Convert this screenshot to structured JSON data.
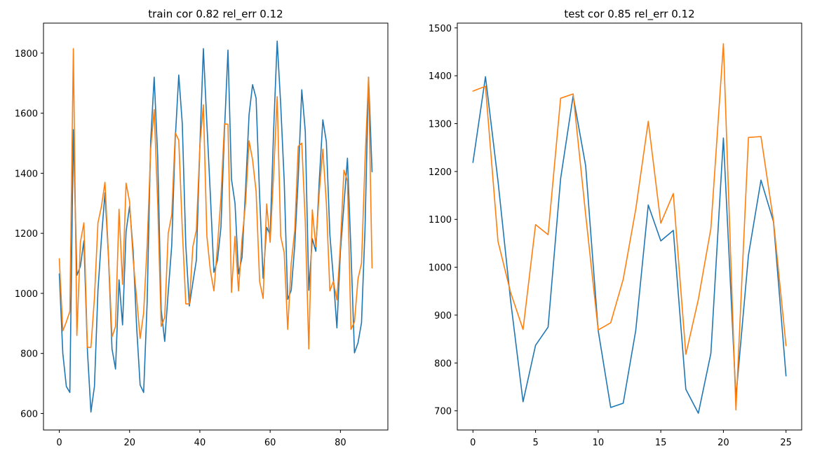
{
  "colors": {
    "actual": "#1f77b4",
    "predicted": "#ff7f0e"
  },
  "chart_data": [
    {
      "type": "line",
      "title": "train cor 0.82 rel_err 0.12",
      "xlabel": "",
      "ylabel": "",
      "xlim": [
        -4.5,
        93.5
      ],
      "ylim": [
        545,
        1900
      ],
      "xticks": [
        0,
        20,
        40,
        60,
        80
      ],
      "yticks": [
        600,
        800,
        1000,
        1200,
        1400,
        1600,
        1800
      ],
      "grid": false,
      "x": [
        0,
        1,
        2,
        3,
        4,
        5,
        6,
        7,
        8,
        9,
        10,
        11,
        12,
        13,
        14,
        15,
        16,
        17,
        18,
        19,
        20,
        21,
        22,
        23,
        24,
        25,
        26,
        27,
        28,
        29,
        30,
        31,
        32,
        33,
        34,
        35,
        36,
        37,
        38,
        39,
        40,
        41,
        42,
        43,
        44,
        45,
        46,
        47,
        48,
        49,
        50,
        51,
        52,
        53,
        54,
        55,
        56,
        57,
        58,
        59,
        60,
        61,
        62,
        63,
        64,
        65,
        66,
        67,
        68,
        69,
        70,
        71,
        72,
        73,
        74,
        75,
        76,
        77,
        78,
        79,
        80,
        81,
        82,
        83,
        84,
        85,
        86,
        87,
        88,
        89
      ],
      "series": [
        {
          "color": "#1f77b4",
          "values": [
            1065,
            800,
            690,
            670,
            1545,
            1060,
            1090,
            1175,
            810,
            605,
            690,
            1010,
            1185,
            1335,
            1120,
            815,
            748,
            1045,
            895,
            1205,
            1290,
            1145,
            890,
            695,
            670,
            970,
            1505,
            1720,
            1455,
            945,
            840,
            1005,
            1160,
            1515,
            1727,
            1565,
            1160,
            958,
            1035,
            1110,
            1490,
            1815,
            1565,
            1325,
            1070,
            1110,
            1220,
            1540,
            1810,
            1380,
            1300,
            1065,
            1120,
            1345,
            1595,
            1695,
            1650,
            1325,
            1050,
            1220,
            1195,
            1545,
            1840,
            1630,
            1375,
            980,
            1010,
            1160,
            1385,
            1678,
            1540,
            1010,
            1182,
            1140,
            1380,
            1578,
            1505,
            1195,
            1050,
            885,
            1140,
            1295,
            1450,
            1140,
            802,
            835,
            902,
            1215,
            1720,
            1405
          ]
        },
        {
          "color": "#ff7f0e",
          "values": [
            1115,
            875,
            905,
            940,
            1815,
            860,
            1170,
            1235,
            820,
            820,
            985,
            1235,
            1290,
            1370,
            1125,
            855,
            890,
            1280,
            1030,
            1367,
            1305,
            1115,
            985,
            850,
            935,
            1160,
            1480,
            1612,
            1300,
            890,
            920,
            1200,
            1262,
            1535,
            1510,
            1215,
            965,
            965,
            1155,
            1210,
            1490,
            1628,
            1190,
            1075,
            1008,
            1155,
            1320,
            1565,
            1563,
            1003,
            1190,
            1008,
            1180,
            1300,
            1508,
            1445,
            1340,
            1040,
            983,
            1298,
            1170,
            1400,
            1655,
            1190,
            1135,
            880,
            1100,
            1210,
            1490,
            1500,
            1240,
            815,
            1278,
            1155,
            1340,
            1480,
            1300,
            1008,
            1040,
            978,
            1165,
            1410,
            1375,
            880,
            905,
            1048,
            1100,
            1440,
            1720,
            1085
          ]
        }
      ]
    },
    {
      "type": "line",
      "title": "test cor 0.85 rel_err 0.12",
      "xlabel": "",
      "ylabel": "",
      "xlim": [
        -1.25,
        26.25
      ],
      "ylim": [
        660,
        1510
      ],
      "xticks": [
        0,
        5,
        10,
        15,
        20,
        25
      ],
      "yticks": [
        700,
        800,
        900,
        1000,
        1100,
        1200,
        1300,
        1400,
        1500
      ],
      "grid": false,
      "x": [
        0,
        1,
        2,
        3,
        4,
        5,
        6,
        7,
        8,
        9,
        10,
        11,
        12,
        13,
        14,
        15,
        16,
        17,
        18,
        19,
        20,
        21,
        22,
        23,
        24,
        25
      ],
      "series": [
        {
          "color": "#1f77b4",
          "values": [
            1219,
            1398,
            1180,
            932,
            719,
            837,
            875,
            1185,
            1358,
            1212,
            868,
            707,
            716,
            868,
            1130,
            1055,
            1077,
            745,
            695,
            820,
            1270,
            728,
            1025,
            1182,
            1095,
            773
          ]
        },
        {
          "color": "#ff7f0e",
          "values": [
            1368,
            1378,
            1054,
            948,
            870,
            1089,
            1068,
            1353,
            1362,
            1110,
            869,
            884,
            975,
            1121,
            1305,
            1092,
            1154,
            818,
            933,
            1081,
            1467,
            702,
            1271,
            1273,
            1097,
            836
          ]
        }
      ]
    }
  ]
}
